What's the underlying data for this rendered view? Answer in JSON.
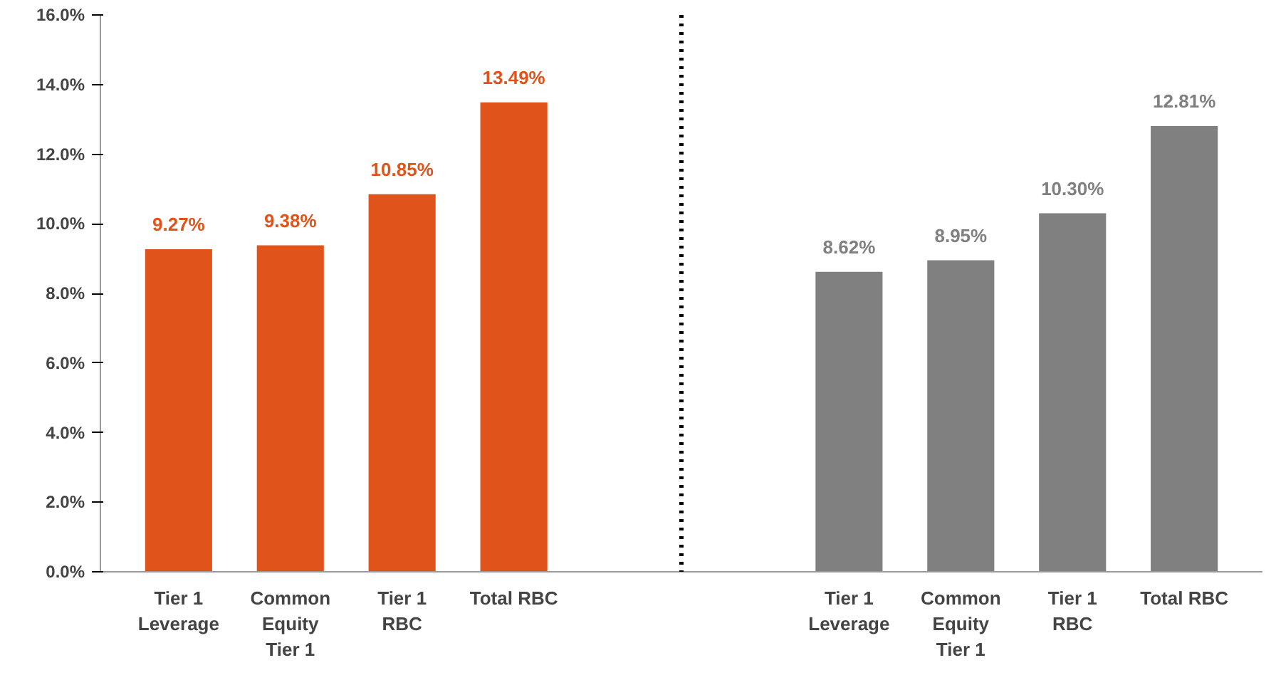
{
  "chart_data": {
    "type": "bar",
    "categories": [
      "Tier 1\nLeverage",
      "Common\nEquity\nTier 1",
      "Tier 1\nRBC",
      "Total RBC",
      null,
      null,
      "Tier 1\nLeverage",
      "Common\nEquity\nTier 1",
      "Tier 1\nRBC",
      "Total RBC"
    ],
    "series": [
      {
        "color": "#e0541b",
        "values": [
          9.27,
          9.38,
          10.85,
          13.49,
          null,
          null,
          null,
          null,
          null,
          null
        ],
        "value_labels": [
          "9.27%",
          "9.38%",
          "10.85%",
          "13.49%",
          null,
          null,
          null,
          null,
          null,
          null
        ]
      },
      {
        "color": "#808080",
        "values": [
          null,
          null,
          null,
          null,
          null,
          null,
          8.62,
          8.95,
          10.3,
          12.81
        ],
        "value_labels": [
          null,
          null,
          null,
          null,
          null,
          null,
          "8.62%",
          "8.95%",
          "10.30%",
          "12.81%"
        ]
      }
    ],
    "ylim": [
      0,
      16
    ],
    "yticks": [
      {
        "value": 0,
        "label": "0.0%"
      },
      {
        "value": 2,
        "label": "2.0%"
      },
      {
        "value": 4,
        "label": "4.0%"
      },
      {
        "value": 6,
        "label": "6.0%"
      },
      {
        "value": 8,
        "label": "8.0%"
      },
      {
        "value": 10,
        "label": "10.0%"
      },
      {
        "value": 12,
        "label": "12.0%"
      },
      {
        "value": 14,
        "label": "14.0%"
      },
      {
        "value": 16,
        "label": "16.0%"
      }
    ],
    "ref_lines": [
      {
        "axis": "x",
        "value": null,
        "line_style": "dotted",
        "color": "#000000"
      }
    ],
    "grid": false
  }
}
